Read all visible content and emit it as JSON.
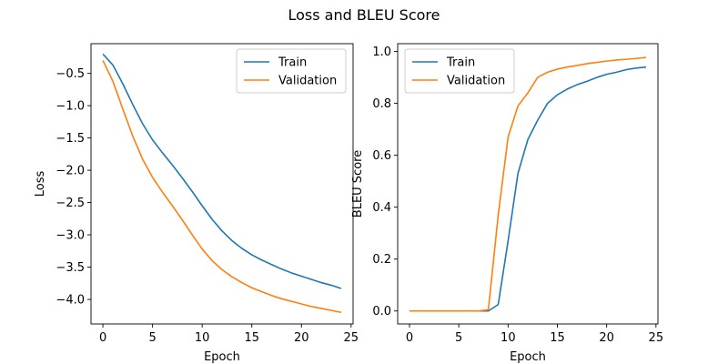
{
  "figure": {
    "suptitle": "Loss and BLEU Score"
  },
  "chart_data": [
    {
      "type": "line",
      "title": "",
      "xlabel": "Epoch",
      "ylabel": "Loss",
      "xlim": [
        -1.2,
        25.2
      ],
      "ylim": [
        -4.38,
        -0.04
      ],
      "xticks": [
        0,
        5,
        10,
        15,
        20,
        25
      ],
      "yticks": [
        -4.0,
        -3.5,
        -3.0,
        -2.5,
        -2.0,
        -1.5,
        -1.0,
        -0.5
      ],
      "ytick_labels": [
        "−4.0",
        "−3.5",
        "−3.0",
        "−2.5",
        "−2.0",
        "−1.5",
        "−1.0",
        "−0.5"
      ],
      "grid": false,
      "legend": "upper-right",
      "x": [
        0,
        1,
        2,
        3,
        4,
        5,
        6,
        7,
        8,
        9,
        10,
        11,
        12,
        13,
        14,
        15,
        16,
        17,
        18,
        19,
        20,
        21,
        22,
        23,
        24
      ],
      "series": [
        {
          "name": "Train",
          "color": "#1f77b4",
          "values": [
            -0.2,
            -0.37,
            -0.66,
            -0.98,
            -1.28,
            -1.53,
            -1.73,
            -1.92,
            -2.12,
            -2.33,
            -2.55,
            -2.76,
            -2.94,
            -3.09,
            -3.21,
            -3.31,
            -3.39,
            -3.46,
            -3.53,
            -3.59,
            -3.64,
            -3.69,
            -3.74,
            -3.78,
            -3.83
          ]
        },
        {
          "name": "Validation",
          "color": "#ff7f0e",
          "values": [
            -0.3,
            -0.62,
            -1.05,
            -1.47,
            -1.83,
            -2.11,
            -2.34,
            -2.55,
            -2.77,
            -3.0,
            -3.22,
            -3.4,
            -3.54,
            -3.65,
            -3.74,
            -3.82,
            -3.88,
            -3.94,
            -3.99,
            -4.03,
            -4.07,
            -4.11,
            -4.14,
            -4.17,
            -4.2
          ]
        }
      ]
    },
    {
      "type": "line",
      "title": "",
      "xlabel": "Epoch",
      "ylabel": "BLEU Score",
      "xlim": [
        -1.2,
        25.2
      ],
      "ylim": [
        -0.05,
        1.03
      ],
      "xticks": [
        0,
        5,
        10,
        15,
        20,
        25
      ],
      "yticks": [
        0.0,
        0.2,
        0.4,
        0.6,
        0.8,
        1.0
      ],
      "ytick_labels": [
        "0.0",
        "0.2",
        "0.4",
        "0.6",
        "0.8",
        "1.0"
      ],
      "grid": false,
      "legend": "upper-left",
      "x": [
        0,
        1,
        2,
        3,
        4,
        5,
        6,
        7,
        8,
        9,
        10,
        11,
        12,
        13,
        14,
        15,
        16,
        17,
        18,
        19,
        20,
        21,
        22,
        23,
        24
      ],
      "series": [
        {
          "name": "Train",
          "color": "#1f77b4",
          "values": [
            0,
            0,
            0,
            0,
            0,
            0,
            0,
            0,
            0,
            0.025,
            0.27,
            0.53,
            0.66,
            0.735,
            0.8,
            0.833,
            0.855,
            0.872,
            0.885,
            0.9,
            0.912,
            0.92,
            0.93,
            0.936,
            0.94
          ]
        },
        {
          "name": "Validation",
          "color": "#ff7f0e",
          "values": [
            0,
            0,
            0,
            0,
            0,
            0,
            0,
            0,
            0.005,
            0.37,
            0.67,
            0.79,
            0.84,
            0.9,
            0.92,
            0.932,
            0.94,
            0.946,
            0.953,
            0.958,
            0.963,
            0.967,
            0.97,
            0.973,
            0.977
          ]
        }
      ]
    }
  ]
}
